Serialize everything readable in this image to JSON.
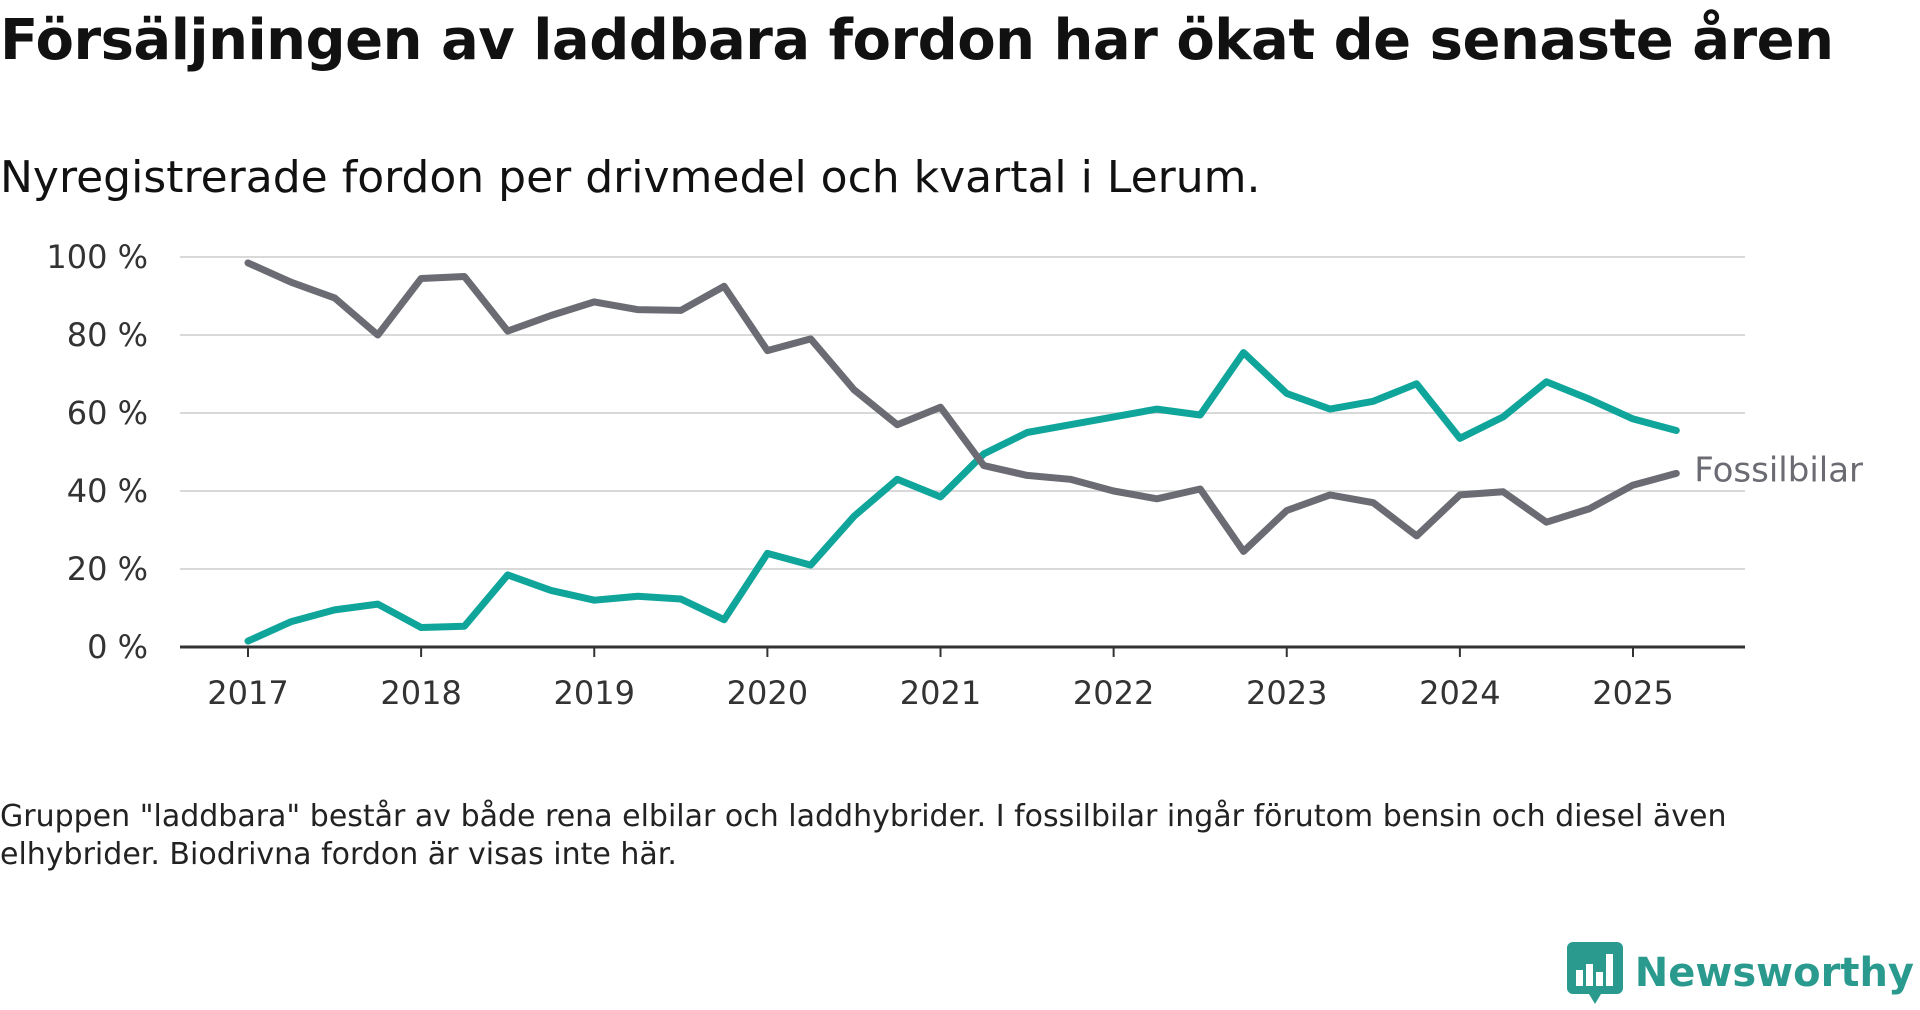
{
  "title": "Försäljningen av laddbara fordon har ökat de senaste åren",
  "subtitle": "Nyregistrerade fordon per drivmedel och kvartal i Lerum.",
  "note": "Gruppen \"laddbara\" består av både rena elbilar och laddhybrider. I fossilbilar ingår förutom bensin och diesel även elhybrider. Biodrivna fordon är visas inte här.",
  "brand": {
    "name": "Newsworthy",
    "icon": "newsworthy-logo-icon",
    "color": "#2a9a8e"
  },
  "chart_data": {
    "type": "line",
    "xlabel": "",
    "ylabel": "",
    "ylim": [
      0,
      100
    ],
    "yticks": [
      0,
      20,
      40,
      60,
      80,
      100
    ],
    "ytick_labels": [
      "0 %",
      "20 %",
      "40 %",
      "60 %",
      "80 %",
      "100 %"
    ],
    "xticks": [
      2017,
      2018,
      2019,
      2020,
      2021,
      2022,
      2023,
      2024,
      2025
    ],
    "xtick_labels": [
      "2017",
      "2018",
      "2019",
      "2020",
      "2021",
      "2022",
      "2023",
      "2024",
      "2025"
    ],
    "grid": "horizontal",
    "x": [
      "2017-Q1",
      "2017-Q2",
      "2017-Q3",
      "2017-Q4",
      "2018-Q1",
      "2018-Q2",
      "2018-Q3",
      "2018-Q4",
      "2019-Q1",
      "2019-Q2",
      "2019-Q3",
      "2019-Q4",
      "2020-Q1",
      "2020-Q2",
      "2020-Q3",
      "2020-Q4",
      "2021-Q1",
      "2021-Q2",
      "2021-Q3",
      "2021-Q4",
      "2022-Q1",
      "2022-Q2",
      "2022-Q3",
      "2022-Q4",
      "2023-Q1",
      "2023-Q2",
      "2023-Q3",
      "2023-Q4",
      "2024-Q1",
      "2024-Q2",
      "2024-Q3",
      "2024-Q4",
      "2025-Q1",
      "2025-Q2"
    ],
    "series": [
      {
        "name": "Fossilbilar",
        "color": "#6b6b73",
        "values": [
          98.5,
          93.5,
          89.5,
          80,
          94.5,
          95,
          81,
          85,
          88.5,
          86.5,
          86.3,
          92.5,
          76,
          79,
          66,
          57,
          61.5,
          46.5,
          44,
          43,
          40,
          38,
          40.5,
          24.5,
          35,
          39,
          37,
          28.5,
          39,
          39.8,
          32,
          35.5,
          41.5,
          44.5
        ]
      },
      {
        "name": "Laddbara",
        "color": "#0fa59a",
        "values": [
          1.5,
          6.5,
          9.5,
          11,
          5,
          5.3,
          18.5,
          14.5,
          12,
          13,
          12.3,
          7,
          24,
          21,
          33.5,
          43,
          38.5,
          49.5,
          55,
          57,
          59,
          61,
          59.5,
          75.5,
          65,
          61,
          63,
          67.5,
          53.5,
          59,
          68,
          63.5,
          58.5,
          55.5
        ]
      }
    ]
  }
}
